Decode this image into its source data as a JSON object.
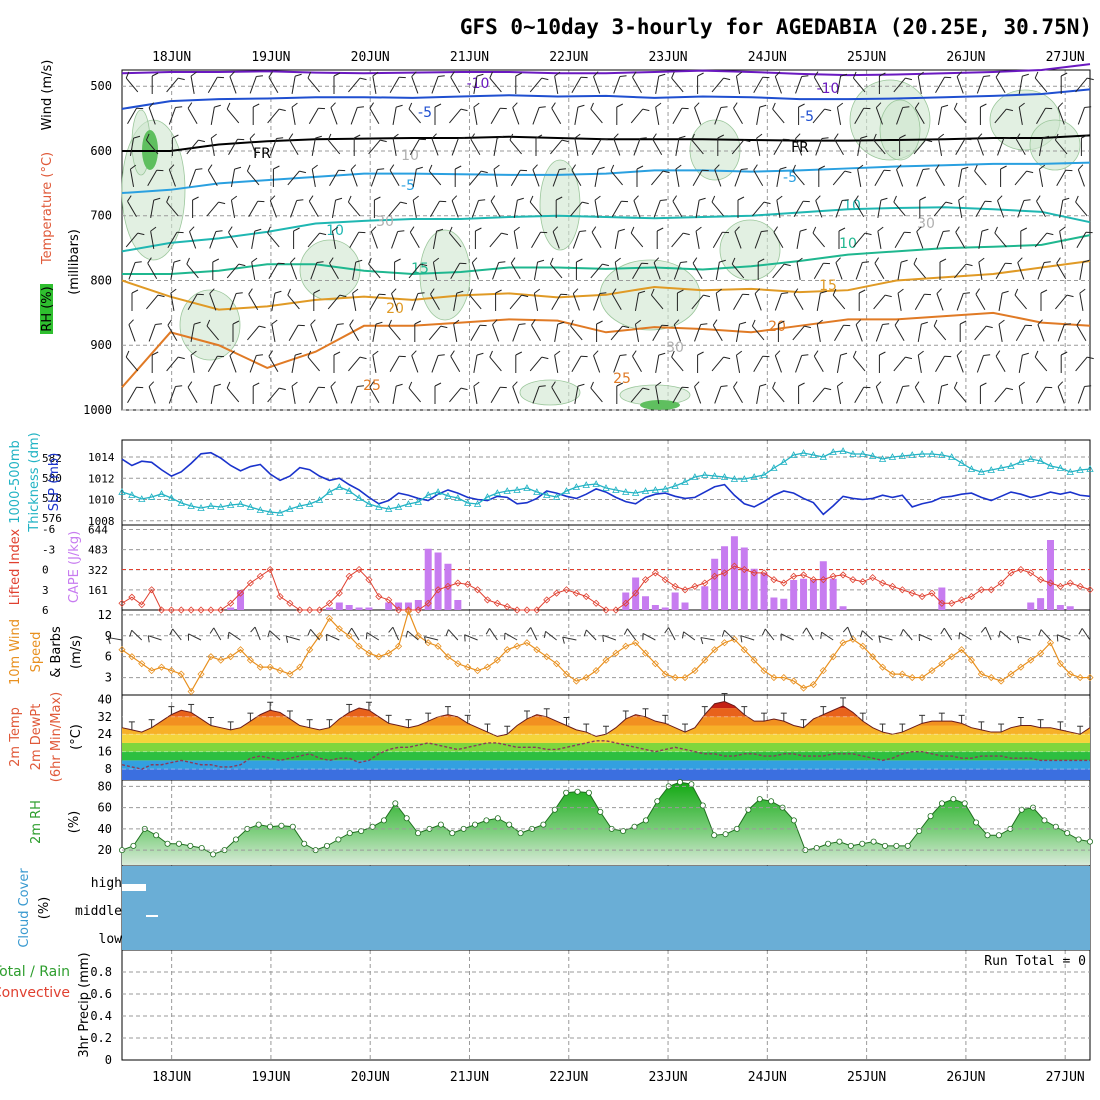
{
  "title": "GFS 0~10day 3-hourly for AGEDABIA (20.25E, 30.75N)",
  "x_day_labels": [
    "18JUN",
    "19JUN",
    "20JUN",
    "21JUN",
    "22JUN",
    "23JUN",
    "24JUN",
    "25JUN",
    "26JUN",
    "27JUN"
  ],
  "run_total_text": "Run Total = 0",
  "colors": {
    "slp": "#1a33cc",
    "thickness": "#22b3c4",
    "cape": "#c77cf0",
    "lifted_index": "#e04030",
    "wind10": "#e8901f",
    "temp_contour_cold": "#6a19c0",
    "rh_fill": "#2e9e2e",
    "cloud": "#6aaed6",
    "grid": "#9a9a9a"
  },
  "panels": [
    {
      "id": "upper_air",
      "labels": [
        {
          "text": "RH (%)",
          "color": "#2e8b2e"
        },
        {
          "text": "Temperature (°C)",
          "color": "#e05a3a"
        },
        {
          "text": "Wind (m/s)",
          "color": "#000000"
        },
        {
          "text": "(millibars)",
          "color": "#000000"
        }
      ],
      "y_ticks": [
        "500",
        "600",
        "700",
        "800",
        "900",
        "1000"
      ],
      "contour_labels": [
        "-10",
        "-10",
        "-5",
        "-5",
        "FR",
        "FR",
        "-5",
        "-5",
        "10",
        "10",
        "10",
        "15",
        "15",
        "20",
        "20",
        "25",
        "25",
        "10",
        "30",
        "30",
        "30"
      ]
    },
    {
      "id": "slp_thickness",
      "labels": [
        {
          "text": "1000-500mb",
          "color": "#22b3c4"
        },
        {
          "text": "Thickness (dm)",
          "color": "#22b3c4"
        },
        {
          "text": "SLP (mb)",
          "color": "#1a33cc"
        }
      ],
      "left_ticks": [
        "582",
        "580",
        "578",
        "576"
      ],
      "right_ticks": [
        "1014",
        "1012",
        "1010",
        "1008"
      ]
    },
    {
      "id": "cape_li",
      "labels": [
        {
          "text": "Lifted Index",
          "color": "#e04030"
        },
        {
          "text": "CAPE (J/kg)",
          "color": "#c77cf0"
        }
      ],
      "left_ticks": [
        "-6",
        "-3",
        "0",
        "3",
        "6"
      ],
      "right_ticks": [
        "644",
        "483",
        "322",
        "161"
      ]
    },
    {
      "id": "wind10",
      "labels": [
        {
          "text": "10m Wind",
          "color": "#e8901f"
        },
        {
          "text": "Speed",
          "color": "#e8901f"
        },
        {
          "text": "& Barbs",
          "color": "#000000"
        },
        {
          "text": "(m/s)",
          "color": "#000000"
        }
      ],
      "y_ticks": [
        "12",
        "9",
        "6",
        "3"
      ]
    },
    {
      "id": "temp2m",
      "labels": [
        {
          "text": "2m Temp",
          "color": "#e05a3a"
        },
        {
          "text": "2m DewPt",
          "color": "#e05a3a"
        },
        {
          "text": "(6hr Min/Max)",
          "color": "#e05a3a"
        },
        {
          "text": "(°C)",
          "color": "#000000"
        }
      ],
      "y_ticks": [
        "40",
        "32",
        "24",
        "16",
        "8"
      ]
    },
    {
      "id": "rh2m",
      "labels": [
        {
          "text": "2m RH",
          "color": "#2e9e2e"
        },
        {
          "text": "(%)",
          "color": "#000000"
        }
      ],
      "y_ticks": [
        "80",
        "60",
        "40",
        "20"
      ]
    },
    {
      "id": "cloud",
      "labels": [
        {
          "text": "Cloud Cover",
          "color": "#3a9ad0"
        },
        {
          "text": "(%)",
          "color": "#000000"
        }
      ],
      "y_ticks": [
        "high",
        "middle",
        "low"
      ]
    },
    {
      "id": "precip",
      "labels": [
        {
          "text": "Total / Rain",
          "color": "#2e9e2e"
        },
        {
          "text": "Convective",
          "color": "#e04030"
        },
        {
          "text": "3hr Precip (mm)",
          "color": "#000000"
        }
      ],
      "y_ticks": [
        "0.8",
        "0.6",
        "0.4",
        "0.2",
        "0"
      ]
    }
  ],
  "chart_data": {
    "type": "meteogram",
    "x_unit": "day",
    "x_start": 17.5,
    "x_end": 27.25,
    "slp_mb": [
      1013.8,
      1013.2,
      1013.6,
      1013.5,
      1012.8,
      1012.2,
      1012.6,
      1013.4,
      1014.3,
      1014.4,
      1013.9,
      1013.2,
      1012.7,
      1013.1,
      1013.3,
      1012.4,
      1011.8,
      1012.2,
      1013.0,
      1012.8,
      1012.2,
      1011.8,
      1012.0,
      1011.4,
      1010.9,
      1010.2,
      1009.6,
      1009.9,
      1010.6,
      1010.4,
      1010.1,
      1009.9,
      1010.5,
      1010.9,
      1010.6,
      1010.2,
      1010.0,
      1009.9,
      1010.3,
      1010.2,
      1009.6,
      1009.7,
      1010.1,
      1010.8,
      1010.6,
      1010.3,
      1010.1,
      1010.5,
      1011.0,
      1010.7,
      1010.2,
      1009.8,
      1009.6,
      1010.2,
      1010.5,
      1010.6,
      1010.3,
      1010.1,
      1010.2,
      1010.7,
      1011.2,
      1011.4,
      1010.4,
      1009.6,
      1009.3,
      1009.8,
      1010.4,
      1010.8,
      1010.6,
      1010.1,
      1009.7,
      1008.6,
      1009.4,
      1010.3,
      1010.1,
      1010.0,
      1010.1,
      1010.4,
      1010.2,
      1010.4,
      1009.3,
      1009.6,
      1009.8,
      1010.2,
      1010.3,
      1010.5,
      1010.6,
      1010.2,
      1009.9,
      1010.3,
      1010.7,
      1010.5,
      1010.2,
      1010.4,
      1010.7,
      1010.5,
      1010.7,
      1010.4,
      1010.3
    ],
    "thickness_dm": [
      578.6,
      578.3,
      577.9,
      578.1,
      578.4,
      578.0,
      577.5,
      577.2,
      577.0,
      577.2,
      577.1,
      577.3,
      577.4,
      577.1,
      576.8,
      576.6,
      576.5,
      576.9,
      577.2,
      577.4,
      577.8,
      578.6,
      579.1,
      578.7,
      578.0,
      577.4,
      577.1,
      576.9,
      577.1,
      577.4,
      577.6,
      578.3,
      578.6,
      578.2,
      578.0,
      577.5,
      577.4,
      578.1,
      578.5,
      578.7,
      578.8,
      579.0,
      578.6,
      578.3,
      578.1,
      578.7,
      579.1,
      579.3,
      579.4,
      579.0,
      578.8,
      578.6,
      578.5,
      578.7,
      578.8,
      578.9,
      579.2,
      579.6,
      580.1,
      580.3,
      580.2,
      580.1,
      579.9,
      579.9,
      580.1,
      580.3,
      581.0,
      581.6,
      582.3,
      582.5,
      582.3,
      582.1,
      582.6,
      582.7,
      582.4,
      582.4,
      582.2,
      581.9,
      582.1,
      582.2,
      582.3,
      582.4,
      582.4,
      582.3,
      582.1,
      581.5,
      580.9,
      580.6,
      580.8,
      581.0,
      581.2,
      581.6,
      581.9,
      581.7,
      581.2,
      581.0,
      580.6,
      580.8,
      580.9
    ],
    "lifted_index": [
      5.0,
      4.1,
      5.2,
      3.0,
      6.0,
      6.0,
      6.0,
      6.0,
      6.0,
      6.0,
      6.0,
      5.0,
      3.5,
      2.0,
      1.0,
      0.0,
      4.0,
      5.0,
      6.0,
      6.0,
      6.0,
      5.0,
      3.5,
      1.0,
      0.0,
      1.5,
      4.0,
      4.5,
      6.0,
      6.0,
      6.0,
      5.0,
      3.0,
      2.5,
      2.0,
      2.2,
      3.0,
      4.5,
      5.0,
      5.5,
      6.0,
      6.0,
      6.0,
      4.5,
      3.5,
      3.0,
      3.5,
      4.0,
      5.0,
      6.0,
      6.0,
      5.0,
      3.5,
      1.5,
      0.5,
      1.5,
      2.5,
      3.0,
      2.5,
      2.0,
      1.0,
      0.5,
      -0.5,
      0.0,
      0.5,
      0.5,
      1.5,
      2.0,
      1.0,
      0.8,
      1.5,
      1.5,
      1.0,
      0.8,
      1.5,
      1.8,
      1.2,
      2.0,
      2.5,
      3.0,
      3.5,
      4.0,
      3.5,
      5.0,
      5.0,
      4.5,
      4.0,
      3.0,
      3.0,
      2.0,
      0.5,
      0.0,
      0.5,
      1.5,
      2.0,
      2.5,
      2.0,
      2.5,
      3.0
    ],
    "cape_jkg": [
      0,
      0,
      0,
      0,
      0,
      0,
      0,
      0,
      0,
      0,
      0,
      20,
      160,
      0,
      0,
      0,
      0,
      0,
      0,
      0,
      0,
      20,
      60,
      40,
      20,
      20,
      0,
      60,
      60,
      60,
      80,
      490,
      460,
      370,
      80,
      0,
      0,
      0,
      0,
      0,
      0,
      0,
      0,
      0,
      0,
      0,
      0,
      0,
      0,
      0,
      0,
      140,
      260,
      110,
      40,
      20,
      140,
      60,
      0,
      190,
      410,
      510,
      590,
      500,
      330,
      300,
      100,
      90,
      240,
      250,
      240,
      390,
      250,
      30,
      0,
      0,
      0,
      0,
      0,
      0,
      0,
      0,
      0,
      180,
      0,
      0,
      0,
      0,
      0,
      0,
      0,
      0,
      60,
      95,
      560,
      40,
      30,
      0,
      0
    ],
    "wind10_ms": [
      7.0,
      6.0,
      5.0,
      4.0,
      4.5,
      4.0,
      3.5,
      1.0,
      3.5,
      6.0,
      5.5,
      6.0,
      7.0,
      5.5,
      4.5,
      4.5,
      4.0,
      3.5,
      4.5,
      7.0,
      9.0,
      11.5,
      10.0,
      9.0,
      7.5,
      6.5,
      6.0,
      6.5,
      7.5,
      12.5,
      9.0,
      8.0,
      7.5,
      6.0,
      5.0,
      4.5,
      4.0,
      4.5,
      5.5,
      7.0,
      7.5,
      8.0,
      7.0,
      6.0,
      5.0,
      3.5,
      2.5,
      3.0,
      4.0,
      5.5,
      6.5,
      7.5,
      8.0,
      6.5,
      5.0,
      3.5,
      3.0,
      3.0,
      4.0,
      5.5,
      7.0,
      8.0,
      8.5,
      7.0,
      5.5,
      4.0,
      3.0,
      3.0,
      2.5,
      1.5,
      2.0,
      4.0,
      6.0,
      8.0,
      8.5,
      7.5,
      6.0,
      4.5,
      3.5,
      3.5,
      3.0,
      3.0,
      4.0,
      5.0,
      6.0,
      7.0,
      5.5,
      3.5,
      3.0,
      2.5,
      3.5,
      4.5,
      5.5,
      6.5,
      8.0,
      5.0,
      3.5,
      3.0,
      3.0
    ],
    "temp2m_c": [
      27,
      26,
      25,
      27,
      30,
      33,
      35,
      34,
      31,
      28,
      27,
      26,
      27,
      30,
      33,
      35,
      34,
      31,
      28,
      27,
      26,
      27,
      31,
      34,
      36,
      35,
      32,
      29,
      28,
      27,
      28,
      30,
      32,
      33,
      32,
      29,
      27,
      25,
      23,
      24,
      28,
      31,
      33,
      32,
      30,
      28,
      26,
      25,
      23,
      24,
      27,
      31,
      33,
      32,
      30,
      29,
      27,
      25,
      27,
      33,
      38,
      39,
      37,
      33,
      30,
      30,
      31,
      30,
      28,
      27,
      31,
      33,
      35,
      37,
      34,
      30,
      27,
      25,
      24,
      25,
      27,
      29,
      30,
      30,
      30,
      29,
      27,
      26,
      25,
      25,
      27,
      28,
      28,
      27,
      27,
      26,
      25,
      24,
      27
    ],
    "dewpt2m_c": [
      10,
      9,
      8,
      10,
      10,
      11,
      12,
      11,
      10,
      10,
      9,
      9,
      10,
      13,
      14,
      13,
      12,
      13,
      14,
      15,
      13,
      12,
      13,
      13,
      11,
      12,
      15,
      17,
      18,
      18,
      19,
      20,
      19,
      18,
      17,
      18,
      19,
      20,
      20,
      19,
      18,
      18,
      18,
      17,
      17,
      18,
      19,
      20,
      21,
      21,
      20,
      19,
      18,
      17,
      16,
      17,
      18,
      17,
      16,
      15,
      15,
      14,
      14,
      15,
      15,
      14,
      14,
      15,
      15,
      14,
      14,
      14,
      15,
      15,
      15,
      14,
      13,
      12,
      13,
      15,
      16,
      16,
      15,
      14,
      14,
      13,
      13,
      14,
      14,
      14,
      13,
      13,
      13,
      12,
      12,
      12,
      12,
      12,
      12
    ],
    "rh2m_pct": [
      20,
      24,
      40,
      34,
      26,
      26,
      24,
      22,
      16,
      20,
      30,
      40,
      44,
      42,
      43,
      42,
      26,
      20,
      24,
      30,
      36,
      38,
      42,
      48,
      64,
      50,
      36,
      40,
      44,
      36,
      40,
      44,
      48,
      50,
      44,
      36,
      40,
      44,
      58,
      74,
      75,
      74,
      56,
      40,
      38,
      42,
      48,
      66,
      80,
      84,
      82,
      62,
      34,
      35,
      40,
      58,
      68,
      66,
      60,
      48,
      20,
      22,
      26,
      28,
      24,
      26,
      28,
      24,
      24,
      24,
      38,
      52,
      64,
      68,
      64,
      46,
      34,
      34,
      40,
      58,
      60,
      48,
      42,
      36,
      30,
      28
    ],
    "cloud_cover": {
      "high": [
        12,
        0,
        0,
        0,
        0,
        0,
        0,
        0,
        0,
        0,
        0,
        0,
        0,
        0,
        0,
        0,
        0,
        0,
        0,
        0,
        0,
        0,
        0,
        0,
        0,
        0,
        0,
        0,
        0,
        0,
        0,
        0,
        0,
        0,
        0,
        0,
        0,
        0,
        0,
        0,
        0,
        0,
        0,
        0,
        0,
        0,
        0,
        0,
        0,
        0,
        0,
        0,
        0,
        0,
        0,
        0,
        0,
        0,
        0,
        0,
        0,
        0,
        0,
        0,
        0,
        0,
        0,
        0,
        0,
        0,
        0,
        0,
        0,
        0,
        0,
        0,
        0,
        0,
        0,
        0
      ],
      "middle": [
        0,
        4,
        0,
        0,
        0,
        0,
        0,
        0,
        0,
        0,
        0,
        0,
        0,
        0,
        0,
        0,
        0,
        0,
        0,
        0,
        0,
        0,
        0,
        0,
        0,
        0,
        0,
        0,
        0,
        0,
        0,
        0,
        0,
        0,
        0,
        0,
        0,
        0,
        0,
        0,
        0,
        0,
        0,
        0,
        0,
        0,
        0,
        0,
        0,
        0,
        0,
        0,
        0,
        0,
        0,
        0,
        0,
        0,
        0,
        0,
        0,
        0,
        0,
        0,
        0,
        0,
        0,
        0,
        0,
        0,
        0,
        0,
        0,
        0,
        0,
        0,
        0,
        0,
        0,
        0
      ],
      "low": 0
    },
    "precip_3hr_mm": 0,
    "upper_air": {
      "p_ticks": [
        500,
        600,
        700,
        800,
        900,
        1000
      ],
      "isotherms": [
        {
          "label": "-10",
          "p": [
            480,
            478,
            478,
            477,
            479,
            480,
            479,
            478,
            478,
            480,
            480,
            478,
            476,
            478,
            481,
            483,
            482,
            480,
            478,
            475,
            466
          ],
          "color": "#6a19c0"
        },
        {
          "label": "-5",
          "p": [
            535,
            523,
            520,
            519,
            517,
            517,
            518,
            516,
            514,
            516,
            515,
            518,
            516,
            517,
            520,
            520,
            519,
            517,
            515,
            512,
            505
          ],
          "color": "#1f4fd0"
        },
        {
          "label": "FR",
          "p": [
            600,
            600,
            590,
            585,
            582,
            581,
            580,
            580,
            578,
            580,
            582,
            582,
            582,
            583,
            584,
            584,
            583,
            582,
            580,
            580,
            576
          ],
          "color": "#000000"
        },
        {
          "label": "5",
          "p": [
            665,
            660,
            650,
            645,
            640,
            635,
            635,
            636,
            637,
            637,
            635,
            630,
            630,
            632,
            630,
            627,
            624,
            622,
            620,
            620,
            618
          ],
          "color": "#2aa0e0"
        },
        {
          "label": "10",
          "p": [
            755,
            742,
            735,
            725,
            712,
            708,
            705,
            705,
            702,
            700,
            702,
            704,
            702,
            700,
            695,
            690,
            688,
            687,
            690,
            694,
            710
          ],
          "color": "#1fb7b2"
        },
        {
          "label": "15",
          "p": [
            790,
            790,
            785,
            775,
            775,
            785,
            790,
            787,
            780,
            780,
            782,
            780,
            783,
            778,
            770,
            760,
            755,
            750,
            748,
            745,
            730
          ],
          "color": "#1fb78f"
        },
        {
          "label": "20",
          "p": [
            800,
            825,
            845,
            840,
            830,
            825,
            830,
            823,
            820,
            826,
            822,
            810,
            815,
            813,
            818,
            815,
            800,
            795,
            790,
            780,
            770
          ],
          "color": "#e09a25"
        },
        {
          "label": "25",
          "p": [
            965,
            880,
            900,
            935,
            910,
            870,
            870,
            865,
            860,
            862,
            880,
            872,
            875,
            880,
            870,
            860,
            860,
            855,
            850,
            865,
            870
          ],
          "color": "#e07a25"
        }
      ]
    }
  }
}
